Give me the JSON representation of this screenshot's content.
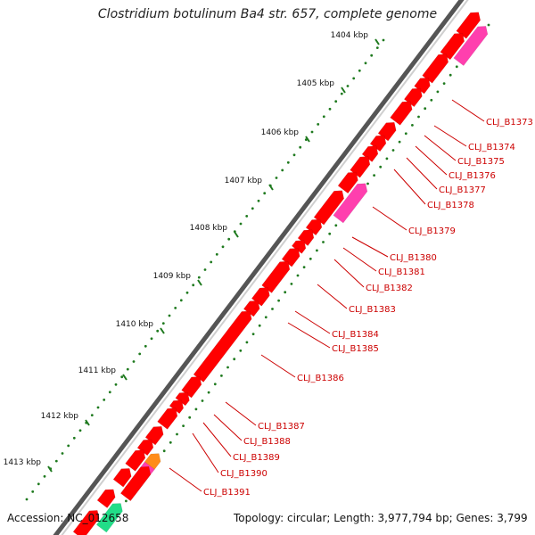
{
  "title": "Clostridium botulinum Ba4 str. 657, complete genome",
  "footer": {
    "accession": "Accession: NC_012658",
    "topology": "Topology: circular; Length: 3,977,794 bp; Genes: 3,799"
  },
  "colors": {
    "backbone": "#666666",
    "cds": "#ff0000",
    "rna_pink": "#ff3fae",
    "orange": "#ff8c1a",
    "green": "#22dd88",
    "tick": "#1f7a1f",
    "label": "#cc0000"
  },
  "kbp_ticks": [
    "1404 kbp",
    "1405 kbp",
    "1406 kbp",
    "1407 kbp",
    "1408 kbp",
    "1409 kbp",
    "1410 kbp",
    "1411 kbp",
    "1412 kbp",
    "1413 kbp"
  ],
  "gene_labels": [
    "CLJ_B1373",
    "CLJ_B1374",
    "CLJ_B1375",
    "CLJ_B1376",
    "CLJ_B1377",
    "CLJ_B1378",
    "CLJ_B1379",
    "CLJ_B1380",
    "CLJ_B1381",
    "CLJ_B1382",
    "CLJ_B1383",
    "CLJ_B1384",
    "CLJ_B1385",
    "CLJ_B1386",
    "CLJ_B1387",
    "CLJ_B1388",
    "CLJ_B1389",
    "CLJ_B1390",
    "CLJ_B1391"
  ]
}
